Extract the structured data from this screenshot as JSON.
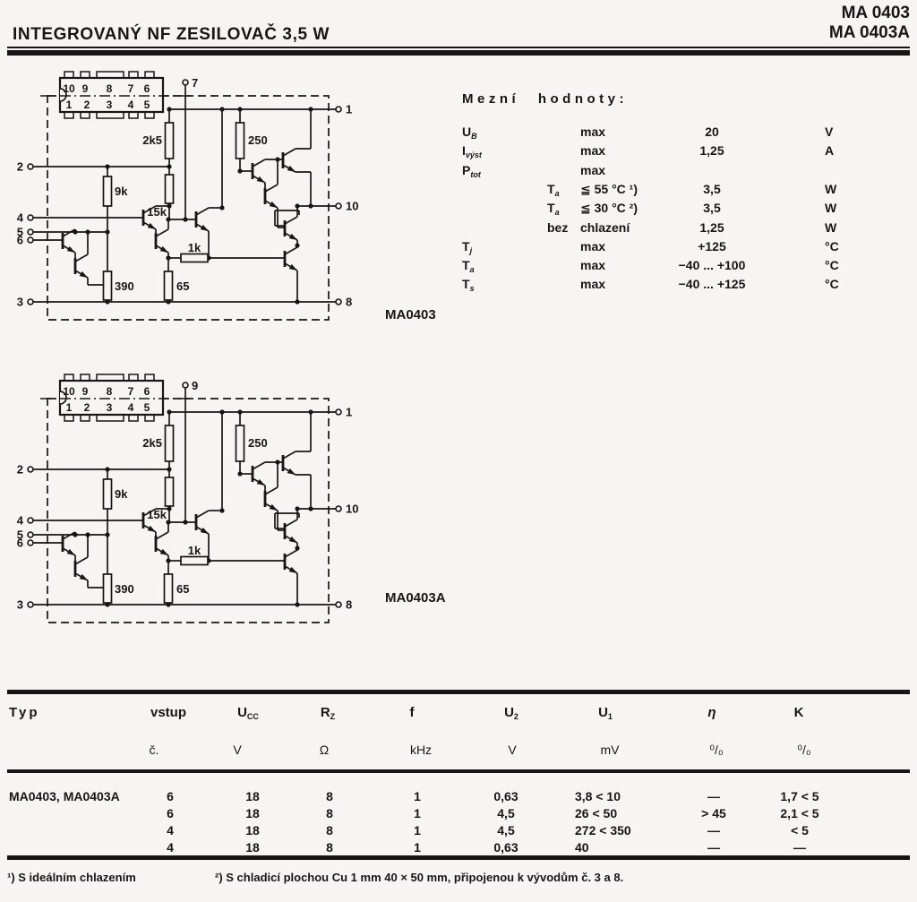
{
  "page": {
    "bg": "#f6f5f1",
    "ink": "#161616"
  },
  "header": {
    "title": "INTEGROVANÝ NF ZESILOVAČ 3,5 W",
    "part_top": "MA 0403",
    "part_bottom": "MA 0403A"
  },
  "limits": {
    "title": "Mezní hodnoty:",
    "rows": [
      {
        "sym": {
          "m": "U",
          "s": "B"
        },
        "mid": "max",
        "val": "20",
        "unit": "V"
      },
      {
        "sym": {
          "m": "I",
          "s": "výst"
        },
        "mid": "max",
        "val": "1,25",
        "unit": "A"
      },
      {
        "sym": {
          "m": "P",
          "s": "tot"
        },
        "mid": "max",
        "val": "",
        "unit": ""
      },
      {
        "pre": {
          "m": "T",
          "s": "a"
        },
        "mid": "≦ 55 °C ¹)",
        "val": "3,5",
        "unit": "W"
      },
      {
        "pre": {
          "m": "T",
          "s": "a"
        },
        "mid": "≦ 30 °C ²)",
        "val": "3,5",
        "unit": "W"
      },
      {
        "pre": {
          "m": "bez"
        },
        "mid": "chlazení",
        "val": "1,25",
        "unit": "W"
      },
      {
        "sym": {
          "m": "T",
          "s": "j"
        },
        "mid": "max",
        "val": "+125",
        "unit": "°C"
      },
      {
        "sym": {
          "m": "T",
          "s": "a"
        },
        "mid": "max",
        "val": "−40 ... +100",
        "unit": "°C"
      },
      {
        "sym": {
          "m": "T",
          "s": "s"
        },
        "mid": "max",
        "val": "−40 ... +125",
        "unit": "°C"
      }
    ]
  },
  "schematic_shared": {
    "package_pins_top": [
      "10",
      "9",
      "8",
      "7",
      "6"
    ],
    "package_pins_bottom": [
      "1",
      "2",
      "3",
      "4",
      "5"
    ],
    "resistor_labels": [
      "2k5",
      "250",
      "9k",
      "15k",
      "1k",
      "390",
      "65"
    ]
  },
  "schematics": [
    {
      "caption": "MA0403",
      "terminal_top": "7",
      "terminals_left": [
        "2",
        "4",
        "5",
        "6",
        "3"
      ],
      "terminals_right": [
        "1",
        "10",
        "8"
      ]
    },
    {
      "caption": "MA0403A",
      "terminal_top": "9",
      "terminals_left": [
        "2",
        "4",
        "5",
        "6",
        "3"
      ],
      "terminals_right": [
        "1",
        "10",
        "8"
      ]
    }
  ],
  "table": {
    "headers": [
      {
        "m": "Typ"
      },
      {
        "m": "vstup"
      },
      {
        "m": "U",
        "s": "CC"
      },
      {
        "m": "R",
        "s": "Z"
      },
      {
        "m": "f"
      },
      {
        "m": "U",
        "s": "2"
      },
      {
        "m": "U",
        "s": "1"
      },
      {
        "m": "η",
        "italic": true
      },
      {
        "m": "K"
      }
    ],
    "units": [
      "",
      "č.",
      "V",
      "Ω",
      "kHz",
      "V",
      "mV",
      "⁰/₀",
      "⁰/₀"
    ],
    "row_label": "MA0403, MA0403A",
    "rows": [
      [
        "6",
        "18",
        "8",
        "1",
        "0,63",
        "3,8 < 10",
        "—",
        "1,7 < 5"
      ],
      [
        "6",
        "18",
        "8",
        "1",
        "4,5",
        "26  < 50",
        "> 45",
        "2,1 < 5"
      ],
      [
        "4",
        "18",
        "8",
        "1",
        "4,5",
        "272 < 350",
        "—",
        "< 5"
      ],
      [
        "4",
        "18",
        "8",
        "1",
        "0,63",
        "40",
        "—",
        "—"
      ]
    ]
  },
  "footnotes": [
    "¹) S ideálním chlazením",
    "²) S chladicí plochou Cu 1 mm 40 × 50 mm, připojenou k vývodům č. 3 a 8."
  ]
}
